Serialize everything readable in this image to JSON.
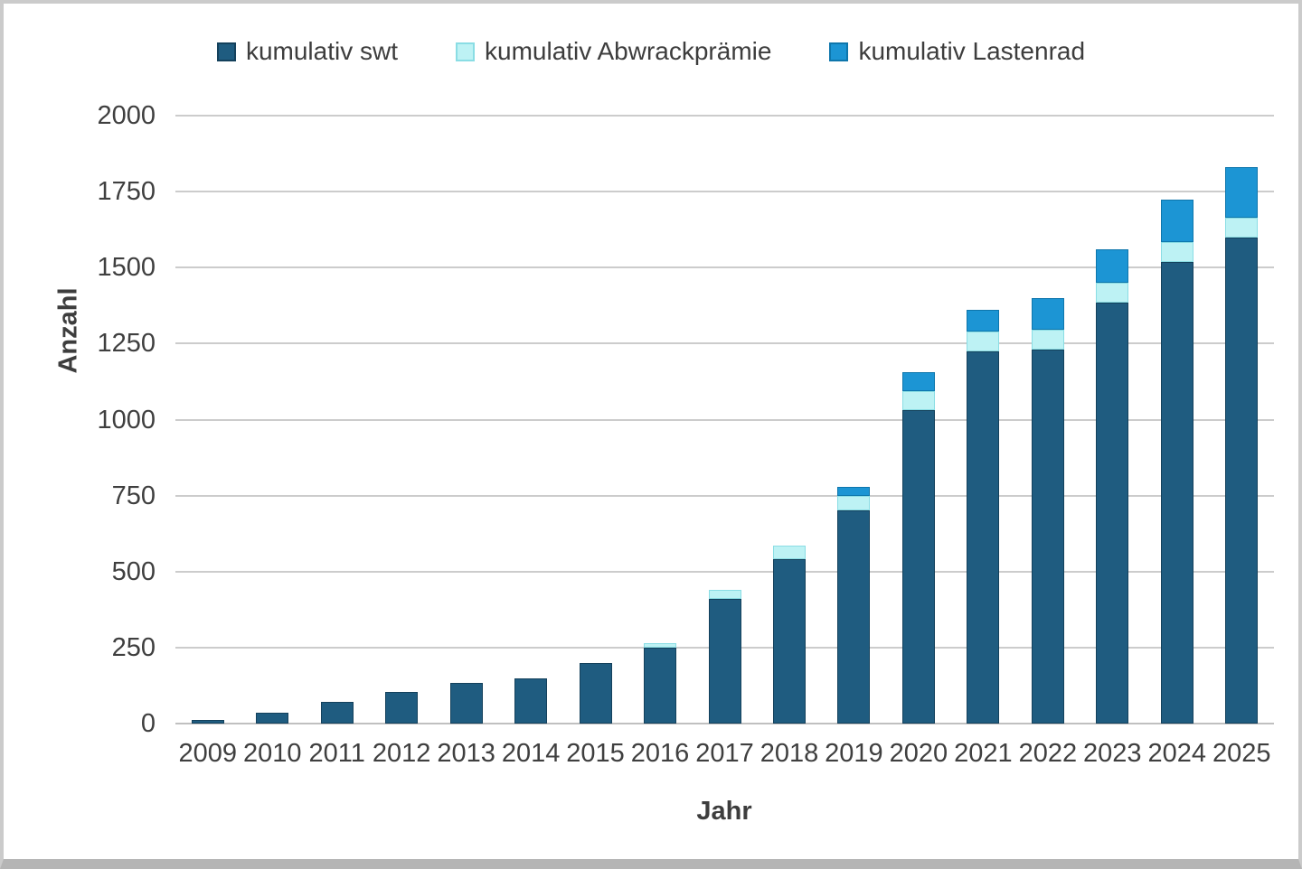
{
  "page": {
    "background": "#ffffff",
    "frame_border_color": "#cbcbcb",
    "frame_bottom_border_color": "#b5b5b5"
  },
  "legend": {
    "position": "top",
    "swatch_icon": "square-swatch-icon"
  },
  "chart_data": {
    "type": "bar",
    "stacked": true,
    "title": "",
    "xlabel": "Jahr",
    "ylabel": "Anzahl",
    "ylim": [
      0,
      2000
    ],
    "yticks": [
      0,
      250,
      500,
      750,
      1000,
      1250,
      1500,
      1750,
      2000
    ],
    "grid": true,
    "legend_position": "top",
    "categories": [
      "2009",
      "2010",
      "2011",
      "2012",
      "2013",
      "2014",
      "2015",
      "2016",
      "2017",
      "2018",
      "2019",
      "2020",
      "2021",
      "2022",
      "2023",
      "2024",
      "2025"
    ],
    "series": [
      {
        "name": "kumulativ swt",
        "color": "#1F5C80",
        "border_color": "#14415C",
        "values": [
          12,
          35,
          70,
          105,
          135,
          150,
          200,
          250,
          410,
          540,
          700,
          1030,
          1225,
          1230,
          1385,
          1520,
          1600
        ]
      },
      {
        "name": "kumulativ Abwrackprämie",
        "color": "#BDF2F4",
        "border_color": "#8ADDE4",
        "values": [
          0,
          0,
          0,
          0,
          0,
          0,
          0,
          15,
          30,
          45,
          50,
          65,
          65,
          65,
          65,
          65,
          65
        ]
      },
      {
        "name": "kumulativ Lastenrad",
        "color": "#1C95D4",
        "border_color": "#0E76AC",
        "values": [
          0,
          0,
          0,
          0,
          0,
          0,
          0,
          0,
          0,
          0,
          30,
          60,
          70,
          105,
          110,
          140,
          165
        ]
      }
    ]
  }
}
